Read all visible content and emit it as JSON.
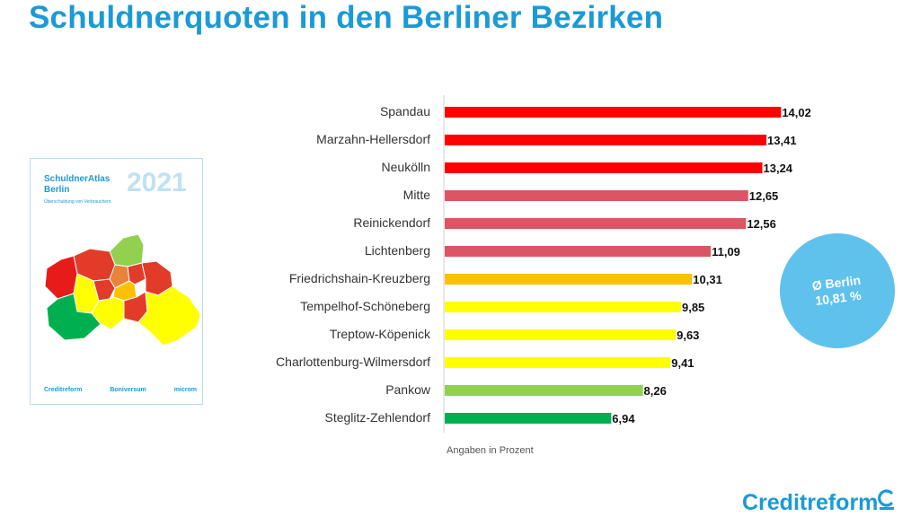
{
  "title": "Schuldnerquoten in den Berliner Bezirken",
  "footnote": "Angaben in Prozent",
  "average": {
    "line1": "Ø Berlin",
    "line2": "10,81 %"
  },
  "cover": {
    "title_line1": "SchuldnerAtlas",
    "title_line2": "Berlin",
    "subtitle": "Überschuldung von Verbrauchern",
    "year": "2021",
    "brands": [
      "Creditreform",
      "Boniversum",
      "microm"
    ]
  },
  "logo": {
    "text": "Creditreform",
    "icon": "creditreform-c-icon"
  },
  "chart_data": {
    "type": "bar",
    "orientation": "horizontal",
    "title": "Schuldnerquoten in den Berliner Bezirken",
    "xlabel": "Angaben in Prozent",
    "ylabel": "",
    "xlim": [
      0,
      14.5
    ],
    "grid": false,
    "categories": [
      "Spandau",
      "Marzahn-Hellersdorf",
      "Neukölln",
      "Mitte",
      "Reinickendorf",
      "Lichtenberg",
      "Friedrichshain-Kreuzberg",
      "Tempelhof-Schöneberg",
      "Treptow-Köpenick",
      "Charlottenburg-Wilmersdorf",
      "Pankow",
      "Steglitz-Zehlendorf"
    ],
    "values": [
      14.02,
      13.41,
      13.24,
      12.65,
      12.56,
      11.09,
      10.31,
      9.85,
      9.63,
      9.41,
      8.26,
      6.94
    ],
    "value_labels": [
      "14,02",
      "13,41",
      "13,24",
      "12,65",
      "12,56",
      "11,09",
      "10,31",
      "9,85",
      "9,63",
      "9,41",
      "8,26",
      "6,94"
    ],
    "colors": [
      "#ff0000",
      "#ff0000",
      "#ff0000",
      "#dc5565",
      "#dc5565",
      "#dc5565",
      "#ffc000",
      "#ffff00",
      "#ffff00",
      "#ffff00",
      "#92d050",
      "#00b050"
    ]
  }
}
